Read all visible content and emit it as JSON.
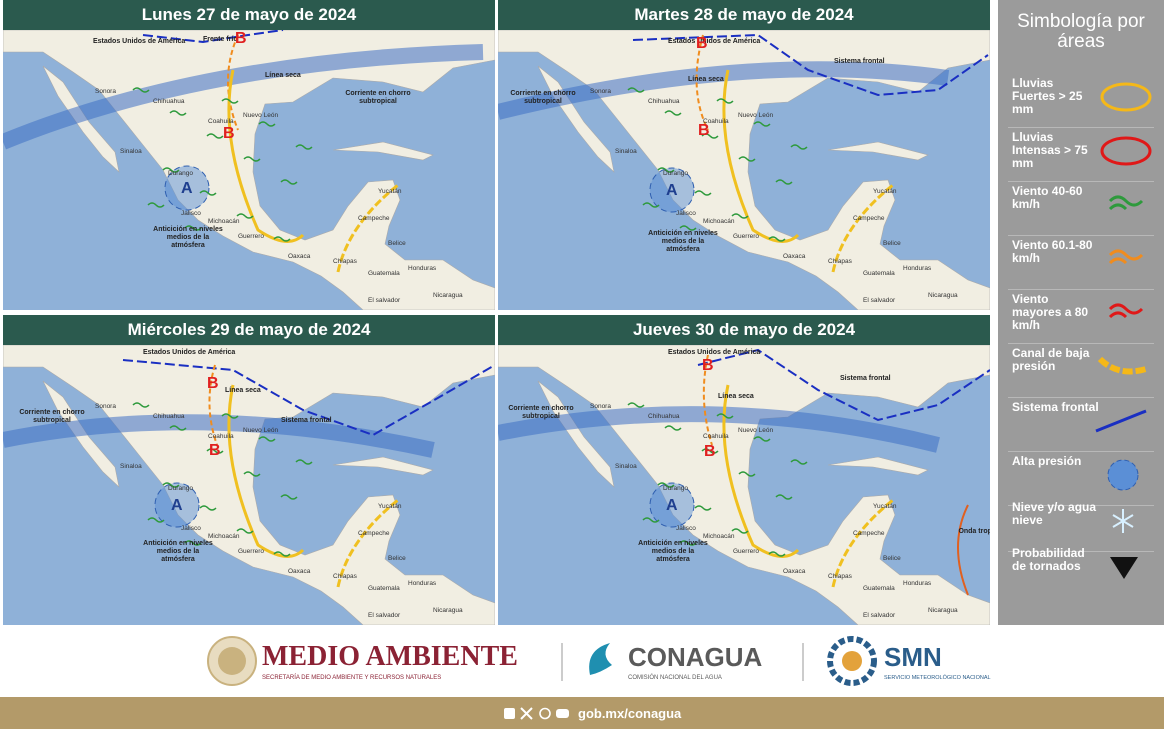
{
  "panels": [
    {
      "title": "Lunes 27 de mayo de 2024",
      "labels": [
        "Sonora",
        "Chihuahua",
        "Sinaloa",
        "Durango",
        "Coahuila",
        "Nuevo León",
        "Jalisco",
        "Michoacán",
        "Guerrero",
        "Oaxaca",
        "Chiapas",
        "Campeche",
        "Yucatán",
        "Belice",
        "Guatemala",
        "Honduras",
        "Nicaragua",
        "El salvador"
      ],
      "features": [
        "Estados Unidos de América",
        "Frente frío",
        "Línea seca",
        "Corriente en chorro subtropical",
        "Anticición en niveles medios de la atmósfera"
      ],
      "highs": [
        "A"
      ],
      "lows": [
        "B",
        "B"
      ]
    },
    {
      "title": "Martes 28 de mayo de 2024",
      "labels": [
        "Sonora",
        "Chihuahua",
        "Sinaloa",
        "Durango",
        "Coahuila",
        "Nuevo León",
        "Jalisco",
        "Michoacán",
        "Guerrero",
        "Oaxaca",
        "Chiapas",
        "Campeche",
        "Yucatán",
        "Belice",
        "Guatemala",
        "Honduras",
        "Nicaragua",
        "El salvador"
      ],
      "features": [
        "Estados Unidos de América",
        "Sistema frontal",
        "Línea seca",
        "Corriente en chorro subtropical",
        "Anticición en niveles medios de la atmósfera"
      ],
      "highs": [
        "A"
      ],
      "lows": [
        "B",
        "B"
      ]
    },
    {
      "title": "Miércoles 29 de mayo de 2024",
      "labels": [
        "Sonora",
        "Chihuahua",
        "Sinaloa",
        "Durango",
        "Coahuila",
        "Nuevo León",
        "Jalisco",
        "Michoacán",
        "Guerrero",
        "Oaxaca",
        "Chiapas",
        "Campeche",
        "Yucatán",
        "Belice",
        "Guatemala",
        "Honduras",
        "Nicaragua",
        "El salvador"
      ],
      "features": [
        "Estados Unidos de América",
        "Sistema frontal",
        "Línea seca",
        "Corriente en chorro subtropical",
        "Anticición en niveles medios de la atmósfera"
      ],
      "highs": [
        "A"
      ],
      "lows": [
        "B",
        "B"
      ]
    },
    {
      "title": "Jueves 30 de mayo de 2024",
      "labels": [
        "Sonora",
        "Chihuahua",
        "Sinaloa",
        "Durango",
        "Coahuila",
        "Nuevo León",
        "Jalisco",
        "Michoacán",
        "Guerrero",
        "Oaxaca",
        "Chiapas",
        "Campeche",
        "Yucatán",
        "Belice",
        "Guatemala",
        "Honduras",
        "Nicaragua",
        "El salvador"
      ],
      "features": [
        "Estados Unidos de América",
        "Sistema frontal",
        "Línea seca",
        "Corriente en chorro subtropical",
        "Anticición en niveles medios de la atmósfera",
        "Onda tropical"
      ],
      "highs": [
        "A"
      ],
      "lows": [
        "B",
        "B"
      ]
    }
  ],
  "legend": {
    "title": "Simbología por áreas",
    "items": [
      "Lluvias Fuertes > 25 mm",
      "Lluvias Intensas > 75 mm",
      "Viento 40-60 km/h",
      "Viento 60.1-80 km/h",
      "Viento mayores a 80 km/h",
      "Canal de baja presión",
      "Sistema frontal",
      "Alta presión",
      "Nieve y/o agua nieve",
      "Probabilidad de tornados"
    ]
  },
  "footer": {
    "org": "MEDIO AMBIENTE",
    "org_sub": "SECRETARÍA DE MEDIO AMBIENTE Y RECURSOS NATURALES",
    "agency": "CONAGUA",
    "agency_sub": "COMISIÓN NACIONAL DEL AGUA",
    "service": "SMN",
    "service_sub": "SERVICIO METEOROLÓGICO NACIONAL",
    "url": "gob.mx/conagua"
  }
}
